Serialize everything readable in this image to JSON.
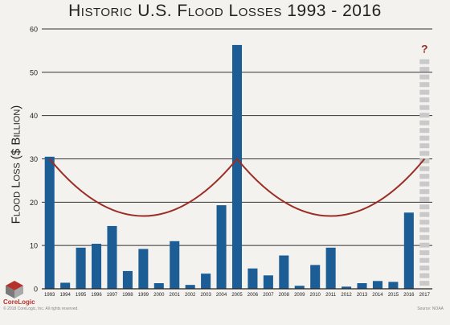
{
  "page": {
    "brand": "CoreLogic",
    "copyright": "© 2018 CoreLogic, Inc. All rights reserved.",
    "source": "Source: NOAA"
  },
  "chart_data": {
    "type": "bar",
    "title": "Historic U.S. Flood Losses 1993 - 2016",
    "ylabel": "Flood Loss ($ Billion)",
    "xlabel": "",
    "ylim": [
      0,
      60
    ],
    "yticks": [
      0,
      10,
      20,
      30,
      40,
      50,
      60
    ],
    "grid": true,
    "categories": [
      "1993",
      "1994",
      "1995",
      "1996",
      "1997",
      "1998",
      "1999",
      "2000",
      "2001",
      "2002",
      "2003",
      "2004",
      "2005",
      "2006",
      "2007",
      "2008",
      "2009",
      "2010",
      "2011",
      "2012",
      "2013",
      "2014",
      "2015",
      "2016",
      "2017"
    ],
    "values": [
      30.5,
      1.4,
      9.5,
      10.4,
      14.5,
      4.1,
      9.2,
      1.3,
      11.0,
      0.9,
      3.5,
      19.3,
      56.3,
      4.7,
      3.1,
      7.7,
      0.7,
      5.5,
      9.5,
      0.5,
      1.3,
      1.8,
      1.6,
      17.6,
      null
    ],
    "unknown_marker": {
      "category": "2017",
      "label": "?",
      "upper": 53
    },
    "cycle_curve": {
      "description": "cyclical trend arcs",
      "arcs": [
        {
          "start": "1993",
          "end": "2005",
          "top": 30,
          "bottom": 16.8
        },
        {
          "start": "2005",
          "end": "2017",
          "top": 30,
          "bottom": 16.8
        }
      ]
    },
    "colors": {
      "bar": "#1c5d96",
      "unknown_bar": "#c9c9c9",
      "curve": "#9b2d25",
      "question": "#9b2d25",
      "grid": "#333333"
    }
  }
}
